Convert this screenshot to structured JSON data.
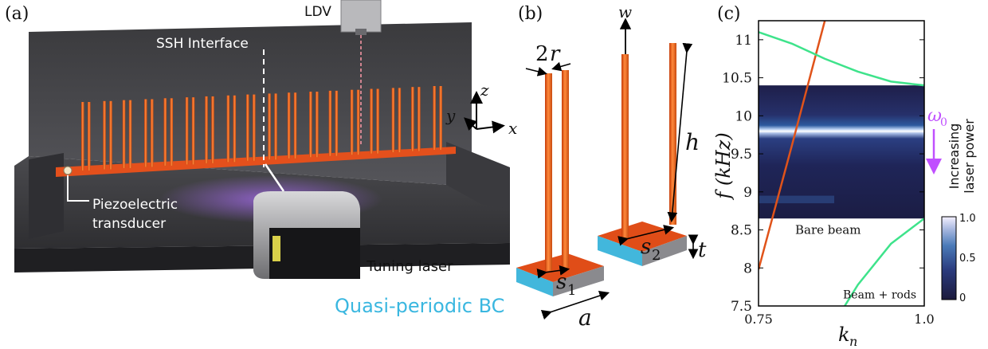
{
  "panel_a": {
    "label": "(a)",
    "ldv_label": "LDV",
    "interface_label": "SSH Interface",
    "axis_z": "z",
    "axis_y": "y",
    "axis_x": "x",
    "transducer_line1": "Piezoelectric",
    "transducer_line2": "transducer",
    "laser_label": "Tuning laser"
  },
  "panel_b": {
    "label": "(b)",
    "w_label": "w",
    "r_num": "2",
    "r_var": "r",
    "h_label": "h",
    "s1_var": "s",
    "s1_sub": "1",
    "s2_var": "s",
    "s2_sub": "2",
    "t_label": "t",
    "a_label": "a",
    "bc_label": "Quasi-periodic BC"
  },
  "panel_c": {
    "label": "(c)",
    "omega_var": "ω",
    "omega_sub": "0",
    "arrow_line1": "Increasing",
    "arrow_line2": "laser power",
    "bare_beam_label": "Bare beam",
    "beam_rods_label": "Beam + rods",
    "colorbar_ticks": [
      "1.0",
      "0.5",
      "0"
    ]
  },
  "chart_data": {
    "type": "line",
    "xlabel_var": "k",
    "xlabel_sub": "n",
    "ylabel": "f (kHz)",
    "xlim": [
      0.75,
      1.0
    ],
    "ylim": [
      7.5,
      11.25
    ],
    "x_tick_labels": [
      "0.75",
      "1.0"
    ],
    "y_ticks": [
      7.5,
      8,
      8.5,
      9,
      9.5,
      10,
      10.5,
      11
    ],
    "y_tick_labels": [
      "7.5",
      "8",
      "8.5",
      "9",
      "9.5",
      "10",
      "10.5",
      "11"
    ],
    "band_gap_heatmap": {
      "f_low": 8.65,
      "f_high": 10.4,
      "peak_f": 9.78
    },
    "series": [
      {
        "name": "Bare beam",
        "color": "#e0531a",
        "x": [
          0.75,
          0.8,
          0.85,
          0.9
        ],
        "y": [
          7.98,
          9.6,
          11.25,
          12.9
        ]
      },
      {
        "name": "Beam + rods",
        "color": "#3ee38b",
        "x": [
          0.75,
          0.8,
          0.85,
          0.9,
          0.95,
          1.0
        ],
        "y": [
          11.1,
          10.95,
          10.75,
          10.58,
          10.45,
          10.4
        ]
      },
      {
        "color": "#3ee38b",
        "x": [
          0.88,
          0.9,
          0.95,
          1.0
        ],
        "y": [
          7.5,
          7.78,
          8.32,
          8.65
        ]
      }
    ]
  }
}
